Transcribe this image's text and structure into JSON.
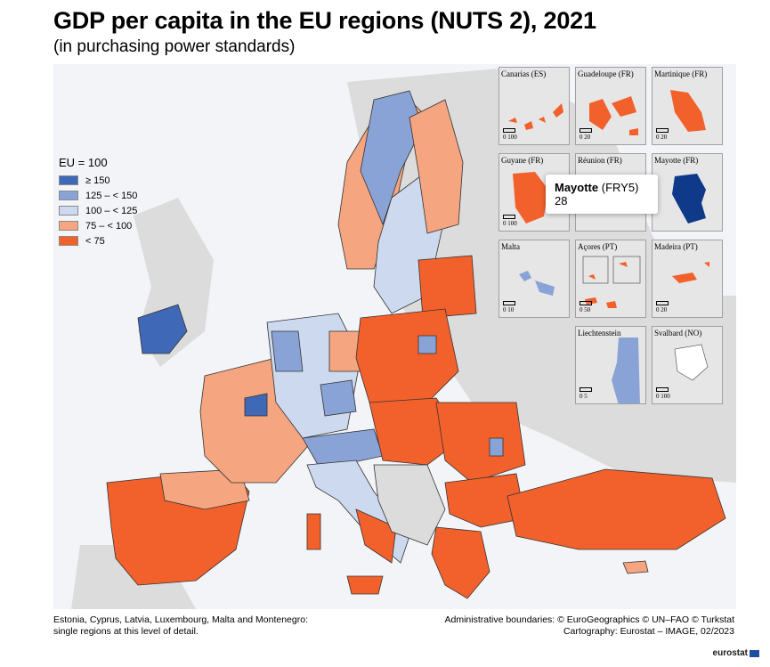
{
  "title": "GDP per capita in the EU regions (NUTS 2), 2021",
  "subtitle": "(in purchasing power standards)",
  "legend": {
    "title": "EU = 100",
    "items": [
      {
        "label": "≥ 150",
        "color": "#3f68b6"
      },
      {
        "label": "125 – < 150",
        "color": "#8aa3d6"
      },
      {
        "label": "100 – < 125",
        "color": "#cdd9ee"
      },
      {
        "label": "75 – < 100",
        "color": "#f5a57f"
      },
      {
        "label": "< 75",
        "color": "#f2612b"
      }
    ]
  },
  "insets": [
    {
      "label": "Canarias (ES)",
      "scale": "0   100"
    },
    {
      "label": "Guadeloupe (FR)",
      "scale": "0   20"
    },
    {
      "label": "Martinique (FR)",
      "scale": "0   20"
    },
    {
      "label": "Guyane (FR)",
      "scale": "0   100"
    },
    {
      "label": "Réunion (FR)",
      "scale": ""
    },
    {
      "label": "Mayotte (FR)",
      "scale": ""
    },
    {
      "label": "Malta",
      "scale": "0   10"
    },
    {
      "label": "Açores (PT)",
      "scale": "0   50"
    },
    {
      "label": "Madeira (PT)",
      "scale": "0   20"
    },
    {
      "label": "Liechtenstein",
      "scale": "0   5"
    },
    {
      "label": "Svalbard (NO)",
      "scale": "0   100"
    }
  ],
  "tooltip": {
    "name": "Mayotte",
    "code": "(FRY5)",
    "value": "28"
  },
  "footnote_left": [
    "Estonia, Cyprus, Latvia, Luxembourg, Malta and Montenegro:",
    "single regions at this level of detail."
  ],
  "footnote_right": [
    "Administrative boundaries: © EuroGeographics © UN–FAO © Turkstat",
    "Cartography: Eurostat – IMAGE, 02/2023"
  ],
  "logo": "eurostat"
}
